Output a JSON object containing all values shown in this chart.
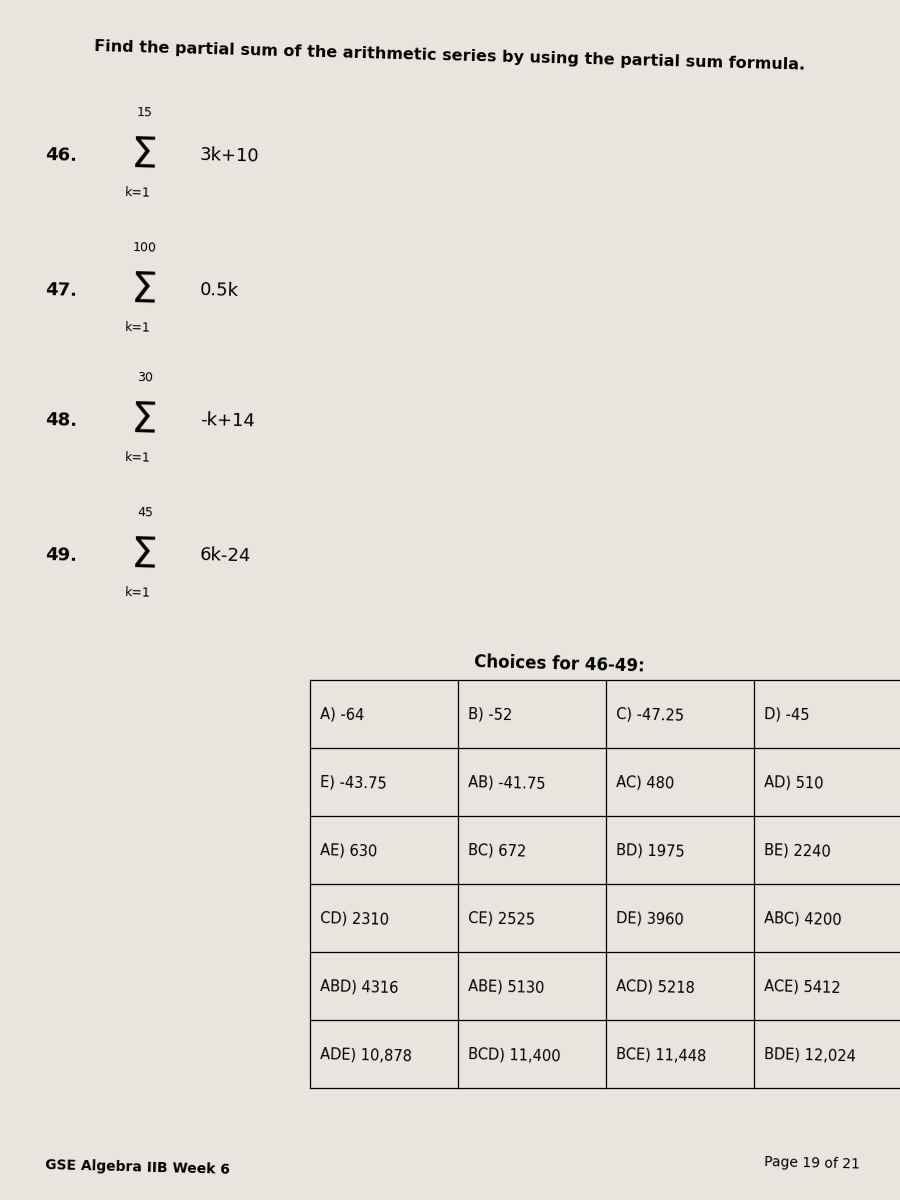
{
  "title": "Find the partial sum of the arithmetic series by using the partial sum formula.",
  "problems": [
    {
      "number": "46.",
      "upper": "15",
      "lower": "k=1",
      "expression": "3k+10"
    },
    {
      "number": "47.",
      "upper": "100",
      "lower": "k=1",
      "expression": "0.5k"
    },
    {
      "number": "48.",
      "upper": "30",
      "lower": "k=1",
      "expression": "-k+14"
    },
    {
      "number": "49.",
      "upper": "45",
      "lower": "k=1",
      "expression": "6k-24"
    }
  ],
  "choices_header": "Choices for 46-49:",
  "table_rows": [
    [
      "A) -64",
      "B) -52",
      "C) -47.25",
      "D) -45"
    ],
    [
      "E) -43.75",
      "AB) -41.75",
      "AC) 480",
      "AD) 510"
    ],
    [
      "AE) 630",
      "BC) 672",
      "BD) 1975",
      "BE) 2240"
    ],
    [
      "CD) 2310",
      "CE) 2525",
      "DE) 3960",
      "ABC) 4200"
    ],
    [
      "ABD) 4316",
      "ABE) 5130",
      "ACD) 5218",
      "ACE) 5412"
    ],
    [
      "ADE) 10,878",
      "BCD) 11,400",
      "BCE) 11,448",
      "BDE) 12,024"
    ]
  ],
  "footer": "GSE Algebra IIB Week 6",
  "page_note": "Page 19 of 21",
  "bg_color": "#dedad4",
  "page_bg": "#e8e4de"
}
